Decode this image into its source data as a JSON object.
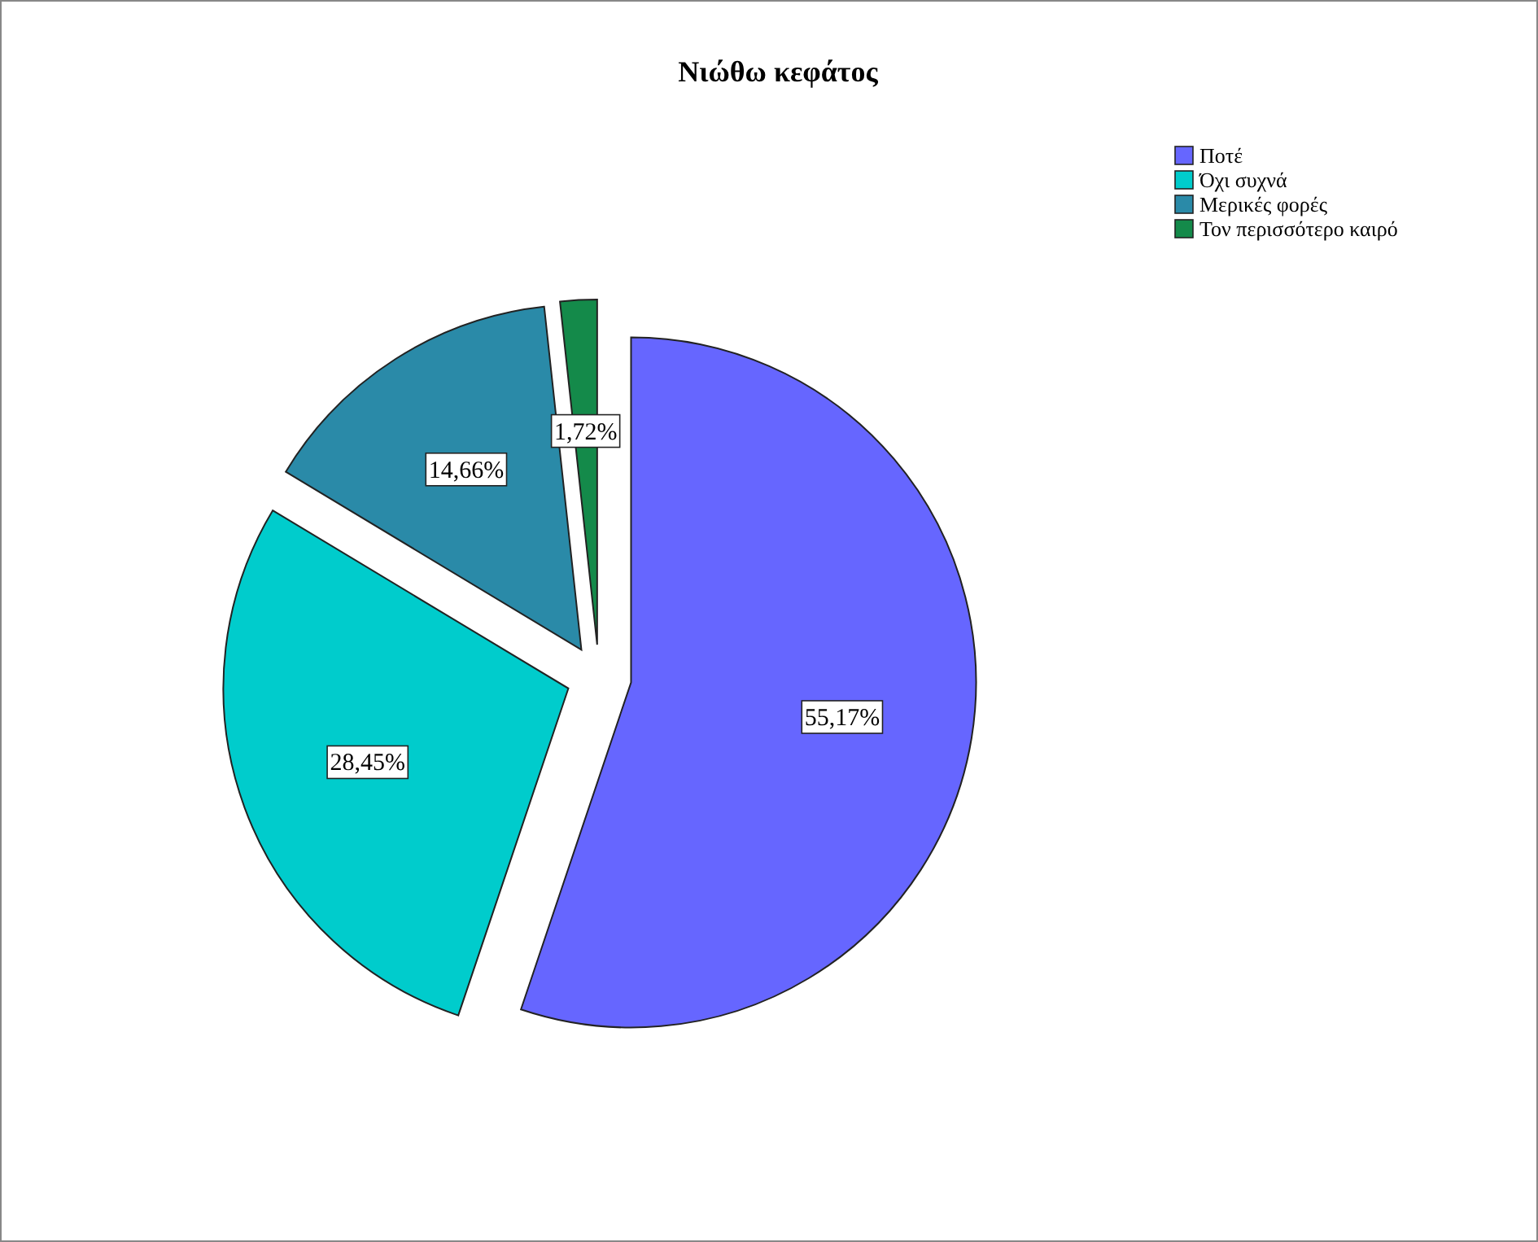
{
  "chart_data": {
    "type": "pie",
    "title": "Νιώθω κεφάτος",
    "categories": [
      "Ποτέ",
      "Όχι συχνά",
      "Μερικές φορές",
      "Τον περισσότερο καιρό"
    ],
    "values": [
      55.17,
      28.45,
      14.66,
      1.72
    ],
    "colors": [
      "#6666ff",
      "#00cccc",
      "#2a8aa8",
      "#148a4a"
    ],
    "value_labels": [
      "55,17%",
      "28,45%",
      "14,66%",
      "1,72%"
    ],
    "legend": "top right"
  }
}
